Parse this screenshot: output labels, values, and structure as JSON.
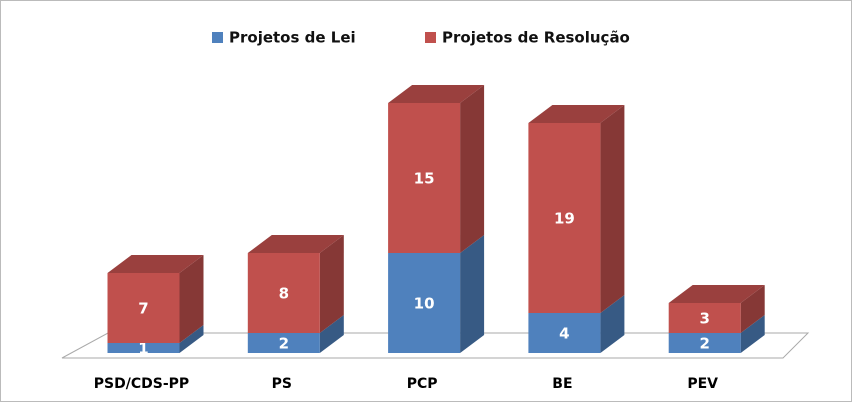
{
  "chart_data": {
    "type": "bar",
    "stacked": true,
    "three_d": true,
    "categories": [
      "PSD/CDS-PP",
      "PS",
      "PCP",
      "BE",
      "PEV"
    ],
    "series": [
      {
        "name": "Projetos de Lei",
        "color": "#4f81bd",
        "values": [
          1,
          2,
          10,
          4,
          2
        ]
      },
      {
        "name": "Projetos de Resolução",
        "color": "#c0504d",
        "values": [
          7,
          8,
          15,
          19,
          3
        ]
      }
    ],
    "legend": "top"
  }
}
